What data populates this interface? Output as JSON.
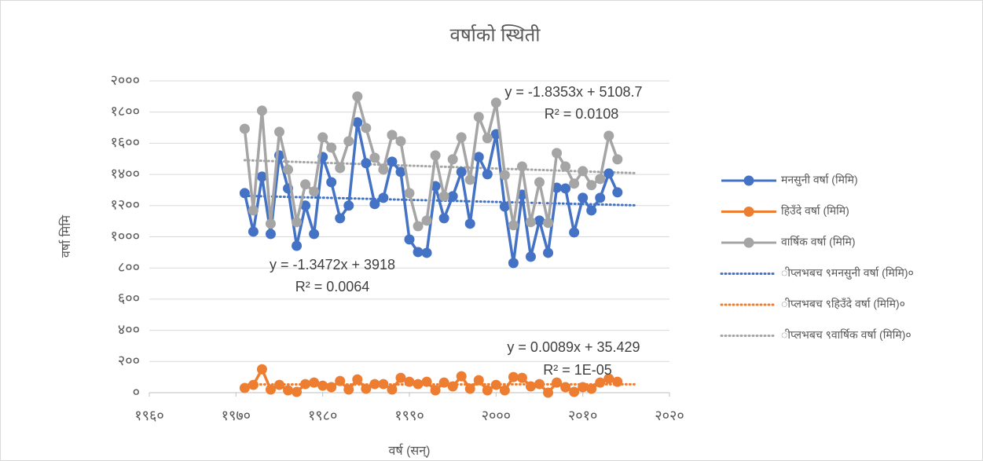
{
  "chart_data": {
    "type": "scatter-line",
    "title": "वर्षाको स्थिती",
    "xlabel": "वर्ष (सन्)",
    "ylabel": "वर्षा मिमि",
    "xlim": [
      1960,
      2020
    ],
    "xticks": [
      {
        "value": 1960,
        "label": "१९६०"
      },
      {
        "value": 1970,
        "label": "१९७०"
      },
      {
        "value": 1980,
        "label": "१९८०"
      },
      {
        "value": 1990,
        "label": "१९९०"
      },
      {
        "value": 2000,
        "label": "२०००"
      },
      {
        "value": 2010,
        "label": "२०१०"
      },
      {
        "value": 2020,
        "label": "२०२०"
      }
    ],
    "ylim": [
      0,
      2000
    ],
    "yticks": [
      {
        "value": 0,
        "label": "०"
      },
      {
        "value": 200,
        "label": "२००"
      },
      {
        "value": 400,
        "label": "४००"
      },
      {
        "value": 600,
        "label": "६००"
      },
      {
        "value": 800,
        "label": "८००"
      },
      {
        "value": 1000,
        "label": "१०००"
      },
      {
        "value": 1200,
        "label": "१२००"
      },
      {
        "value": 1400,
        "label": "१४००"
      },
      {
        "value": 1600,
        "label": "१६००"
      },
      {
        "value": 1800,
        "label": "१८००"
      },
      {
        "value": 2000,
        "label": "२०००"
      }
    ],
    "grid": true,
    "legend": "right",
    "x": [
      1971,
      1972,
      1973,
      1974,
      1975,
      1976,
      1977,
      1978,
      1979,
      1980,
      1981,
      1982,
      1983,
      1984,
      1985,
      1986,
      1987,
      1988,
      1989,
      1990,
      1991,
      1992,
      1993,
      1994,
      1995,
      1996,
      1997,
      1998,
      1999,
      2000,
      2001,
      2002,
      2003,
      2004,
      2005,
      2006,
      2007,
      2008,
      2009,
      2010,
      2011,
      2012,
      2013,
      2014
    ],
    "series": [
      {
        "name": "मनसुनी वर्षा (मिमि)",
        "color": "#4472c4",
        "markers": true,
        "values": [
          1280,
          1033,
          1386,
          1018,
          1522,
          1310,
          942,
          1200,
          1018,
          1512,
          1350,
          1119,
          1200,
          1734,
          1472,
          1210,
          1250,
          1482,
          1416,
          983,
          902,
          897,
          1325,
          1119,
          1260,
          1416,
          1084,
          1512,
          1401,
          1658,
          1194,
          832,
          1270,
          872,
          1104,
          897,
          1315,
          1310,
          1028,
          1250,
          1169,
          1250,
          1406,
          1285
        ]
      },
      {
        "name": "हिउँदे वर्षा (मिमि)",
        "color": "#ed7d31",
        "markers": true,
        "values": [
          30,
          50,
          150,
          20,
          50,
          15,
          5,
          55,
          65,
          45,
          35,
          75,
          20,
          85,
          25,
          55,
          55,
          20,
          95,
          70,
          55,
          70,
          15,
          65,
          40,
          105,
          25,
          80,
          15,
          50,
          15,
          100,
          95,
          40,
          55,
          0,
          65,
          35,
          5,
          35,
          25,
          65,
          90,
          70
        ]
      },
      {
        "name": "वार्षिक वर्षा (मिमि)",
        "color": "#a5a5a5",
        "markers": true,
        "values": [
          1693,
          1169,
          1809,
          1084,
          1673,
          1431,
          1094,
          1336,
          1290,
          1638,
          1572,
          1441,
          1613,
          1900,
          1698,
          1507,
          1431,
          1653,
          1613,
          1280,
          1068,
          1104,
          1522,
          1260,
          1497,
          1638,
          1366,
          1769,
          1633,
          1860,
          1396,
          1074,
          1451,
          1094,
          1350,
          1089,
          1537,
          1451,
          1341,
          1421,
          1331,
          1371,
          1648,
          1497
        ]
      },
      {
        "name": "ीप्लभबच ९मनसुनी वर्षा (मिमि)०",
        "color": "#4472c4",
        "dash": "dotted",
        "x": [
          1971,
          2016
        ],
        "values": [
          1262.7,
          1202.0
        ]
      },
      {
        "name": "ीप्लभबच ९हिउँदे वर्षा (मिमि)०",
        "color": "#ed7d31",
        "dash": "dotted",
        "x": [
          1971,
          2016
        ],
        "values": [
          52.97,
          53.37
        ]
      },
      {
        "name": "ीप्लभबच ९वार्षिक वर्षा (मिमि)०",
        "color": "#a5a5a5",
        "dash": "dotted",
        "x": [
          1971,
          2016
        ],
        "values": [
          1491.3,
          1408.7
        ]
      }
    ],
    "annotations": [
      [
        "y = -1.8353x + 5108.7",
        "R² = 0.0108"
      ],
      [
        "y = -1.3472x + 3918",
        "R² = 0.0064"
      ],
      [
        "y = 0.0089x + 35.429",
        "R² = 1E-05"
      ]
    ]
  }
}
